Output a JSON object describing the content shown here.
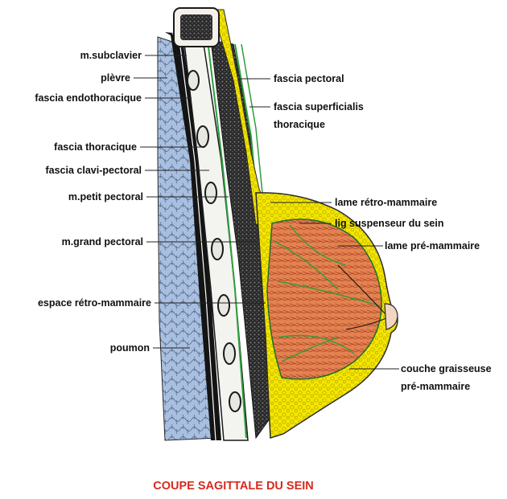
{
  "labels_left": [
    "m.subclavier",
    "plèvre",
    "fascia endothoracique",
    "fascia thoracique",
    "fascia clavi-pectoral",
    "m.petit pectoral",
    "m.grand pectoral",
    "espace rétro-mammaire",
    "poumon"
  ],
  "labels_right": [
    "fascia pectoral",
    "fascia superficialis",
    "thoracique",
    "lame rétro-mammaire",
    "lig suspenseur du sein",
    "lame pré-mammaire",
    "couche graisseuse",
    "pré-mammaire"
  ],
  "caption": "COUPE SAGITTALE DU SEIN",
  "colors": {
    "caption": "#d62a1f",
    "lung": "#a8bfe0",
    "muscle": "#2b2b2b",
    "fat": "#f2e500",
    "gland": "#e07f4d",
    "fascia": "#2e9e3a"
  }
}
